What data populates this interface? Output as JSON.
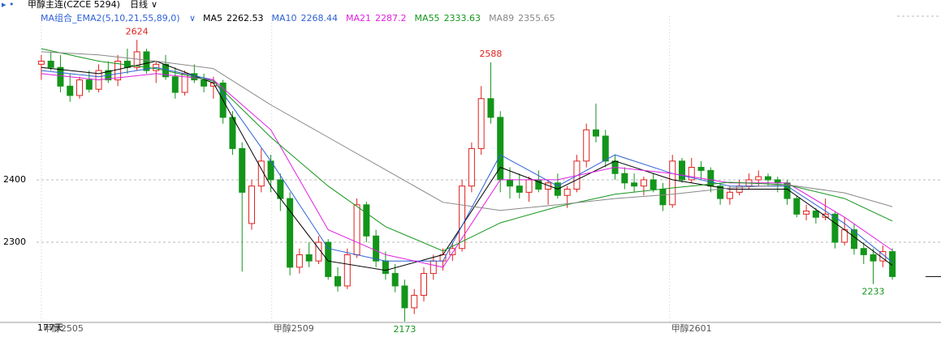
{
  "chart_data": {
    "type": "candlestick",
    "title": "甲醇主连(CZCE 5294)",
    "period": "日线",
    "indicator": "MA组合_EMA2(5,10,21,55,89,0)",
    "days_label": "177天",
    "ylim": [
      2169,
      2662
    ],
    "yticks": [
      2300,
      2400
    ],
    "grid": true,
    "up_color": "#e0211e",
    "down_color": "#13951a",
    "xticks": [
      {
        "value": 0,
        "label": "甲醇2505"
      },
      {
        "value": 24.1,
        "label": "甲醇2509"
      },
      {
        "value": 65.7,
        "label": "甲醇2601"
      }
    ],
    "annotations": [
      {
        "label": "2624",
        "value": 2624,
        "at": "high"
      },
      {
        "label": "2588",
        "value": 2588,
        "at": "high"
      },
      {
        "label": "2173",
        "value": 2173,
        "at": "low"
      },
      {
        "label": "2233",
        "value": 2233,
        "at": "low"
      }
    ],
    "candles": [
      [
        2585,
        2600,
        2560,
        2590
      ],
      [
        2590,
        2605,
        2575,
        2580
      ],
      [
        2580,
        2600,
        2540,
        2550
      ],
      [
        2550,
        2570,
        2525,
        2535
      ],
      [
        2535,
        2565,
        2530,
        2560
      ],
      [
        2560,
        2575,
        2540,
        2545
      ],
      [
        2545,
        2585,
        2540,
        2575
      ],
      [
        2575,
        2590,
        2555,
        2560
      ],
      [
        2560,
        2600,
        2550,
        2590
      ],
      [
        2590,
        2610,
        2570,
        2580
      ],
      [
        2580,
        2624,
        2575,
        2605
      ],
      [
        2605,
        2610,
        2570,
        2575
      ],
      [
        2575,
        2590,
        2555,
        2585
      ],
      [
        2585,
        2600,
        2560,
        2565
      ],
      [
        2565,
        2580,
        2530,
        2540
      ],
      [
        2540,
        2575,
        2535,
        2570
      ],
      [
        2570,
        2585,
        2555,
        2560
      ],
      [
        2560,
        2570,
        2540,
        2550
      ],
      [
        2550,
        2565,
        2530,
        2555
      ],
      [
        2555,
        2560,
        2490,
        2500
      ],
      [
        2500,
        2510,
        2440,
        2450
      ],
      [
        2450,
        2460,
        2253,
        2380
      ],
      [
        2330,
        2400,
        2320,
        2390
      ],
      [
        2390,
        2450,
        2380,
        2430
      ],
      [
        2430,
        2440,
        2380,
        2400
      ],
      [
        2400,
        2410,
        2350,
        2370
      ],
      [
        2370,
        2380,
        2247,
        2260
      ],
      [
        2260,
        2290,
        2250,
        2280
      ],
      [
        2280,
        2300,
        2260,
        2270
      ],
      [
        2270,
        2310,
        2265,
        2300
      ],
      [
        2300,
        2305,
        2240,
        2245
      ],
      [
        2245,
        2260,
        2221,
        2230
      ],
      [
        2230,
        2290,
        2225,
        2280
      ],
      [
        2280,
        2370,
        2275,
        2360
      ],
      [
        2360,
        2365,
        2300,
        2310
      ],
      [
        2310,
        2320,
        2260,
        2270
      ],
      [
        2270,
        2285,
        2240,
        2250
      ],
      [
        2250,
        2265,
        2220,
        2230
      ],
      [
        2230,
        2240,
        2173,
        2195
      ],
      [
        2195,
        2225,
        2185,
        2215
      ],
      [
        2215,
        2260,
        2205,
        2250
      ],
      [
        2250,
        2280,
        2240,
        2270
      ],
      [
        2270,
        2290,
        2255,
        2280
      ],
      [
        2280,
        2300,
        2270,
        2290
      ],
      [
        2290,
        2400,
        2285,
        2390
      ],
      [
        2390,
        2460,
        2380,
        2450
      ],
      [
        2450,
        2550,
        2440,
        2530
      ],
      [
        2530,
        2588,
        2490,
        2500
      ],
      [
        2500,
        2510,
        2380,
        2400
      ],
      [
        2400,
        2420,
        2370,
        2390
      ],
      [
        2390,
        2410,
        2370,
        2380
      ],
      [
        2380,
        2405,
        2365,
        2400
      ],
      [
        2400,
        2415,
        2380,
        2385
      ],
      [
        2385,
        2400,
        2360,
        2395
      ],
      [
        2395,
        2410,
        2370,
        2375
      ],
      [
        2375,
        2390,
        2355,
        2385
      ],
      [
        2385,
        2440,
        2380,
        2430
      ],
      [
        2430,
        2490,
        2420,
        2480
      ],
      [
        2480,
        2522,
        2460,
        2470
      ],
      [
        2470,
        2480,
        2420,
        2430
      ],
      [
        2430,
        2440,
        2400,
        2410
      ],
      [
        2410,
        2420,
        2385,
        2395
      ],
      [
        2395,
        2410,
        2380,
        2390
      ],
      [
        2390,
        2405,
        2375,
        2400
      ],
      [
        2400,
        2410,
        2380,
        2385
      ],
      [
        2385,
        2395,
        2350,
        2360
      ],
      [
        2360,
        2440,
        2355,
        2430
      ],
      [
        2430,
        2435,
        2395,
        2400
      ],
      [
        2400,
        2435,
        2395,
        2420
      ],
      [
        2420,
        2430,
        2400,
        2415
      ],
      [
        2415,
        2420,
        2380,
        2390
      ],
      [
        2390,
        2395,
        2360,
        2370
      ],
      [
        2370,
        2390,
        2360,
        2380
      ],
      [
        2380,
        2400,
        2375,
        2390
      ],
      [
        2390,
        2410,
        2385,
        2400
      ],
      [
        2400,
        2415,
        2390,
        2405
      ],
      [
        2405,
        2410,
        2390,
        2400
      ],
      [
        2400,
        2405,
        2380,
        2395
      ],
      [
        2395,
        2400,
        2360,
        2370
      ],
      [
        2370,
        2375,
        2340,
        2345
      ],
      [
        2345,
        2360,
        2335,
        2350
      ],
      [
        2350,
        2355,
        2330,
        2340
      ],
      [
        2340,
        2370,
        2335,
        2345
      ],
      [
        2345,
        2350,
        2290,
        2300
      ],
      [
        2300,
        2340,
        2295,
        2320
      ],
      [
        2320,
        2330,
        2280,
        2290
      ],
      [
        2290,
        2300,
        2265,
        2280
      ],
      [
        2280,
        2290,
        2233,
        2270
      ],
      [
        2270,
        2295,
        2260,
        2285
      ],
      [
        2285,
        2290,
        2240,
        2245
      ]
    ],
    "ma_x": [
      0,
      6,
      12,
      18,
      24,
      30,
      36,
      42,
      48,
      54,
      60,
      66,
      72,
      78,
      84,
      89
    ],
    "ma_lines": [
      {
        "name": "MA5",
        "last": 2262.53,
        "color": "#000000",
        "values": [
          2580,
          2570,
          2590,
          2555,
          2390,
          2270,
          2255,
          2280,
          2420,
          2385,
          2430,
          2400,
          2385,
          2385,
          2320,
          2263
        ]
      },
      {
        "name": "MA10",
        "last": 2268.44,
        "color": "#2f62d6",
        "values": [
          2575,
          2565,
          2580,
          2560,
          2430,
          2290,
          2270,
          2270,
          2440,
          2390,
          2440,
          2410,
          2390,
          2390,
          2330,
          2268
        ]
      },
      {
        "name": "MA21",
        "last": 2287.2,
        "color": "#e01ee0",
        "values": [
          2570,
          2560,
          2570,
          2560,
          2480,
          2320,
          2280,
          2260,
          2400,
          2400,
          2420,
          2410,
          2395,
          2395,
          2340,
          2287
        ]
      },
      {
        "name": "MA55",
        "last": 2333.63,
        "color": "#13951a",
        "values": [
          2610,
          2590,
          2578,
          2558,
          2468,
          2390,
          2325,
          2286,
          2331,
          2357,
          2377,
          2387,
          2396,
          2392,
          2370,
          2334
        ]
      },
      {
        "name": "MA89",
        "last": 2355.65,
        "color": "#888888",
        "values": [
          2605,
          2600,
          2590,
          2578,
          2520,
          2468,
          2416,
          2364,
          2351,
          2360,
          2370,
          2377,
          2387,
          2392,
          2379,
          2357
        ]
      }
    ]
  }
}
